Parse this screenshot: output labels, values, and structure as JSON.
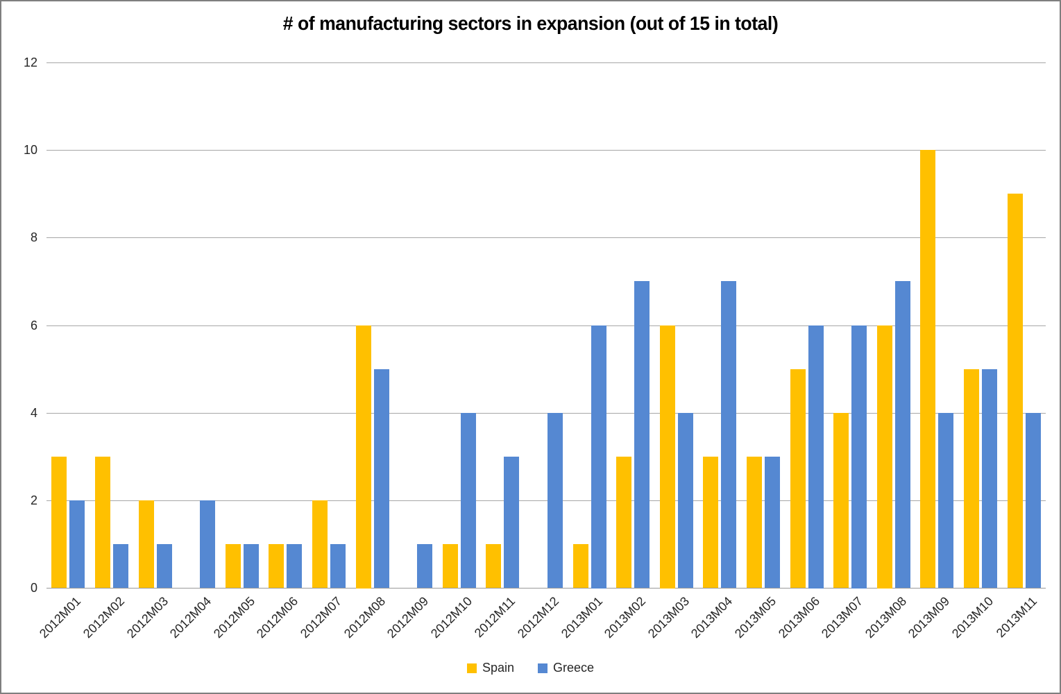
{
  "chart_data": {
    "type": "bar",
    "title": "# of manufacturing sectors in expansion (out of 15 in total)",
    "categories": [
      "2012M01",
      "2012M02",
      "2012M03",
      "2012M04",
      "2012M05",
      "2012M06",
      "2012M07",
      "2012M08",
      "2012M09",
      "2012M10",
      "2012M11",
      "2012M12",
      "2013M01",
      "2013M02",
      "2013M03",
      "2013M04",
      "2013M05",
      "2013M06",
      "2013M07",
      "2013M08",
      "2013M09",
      "2013M10",
      "2013M11"
    ],
    "series": [
      {
        "name": "Spain",
        "color": "#FFC000",
        "values": [
          3,
          3,
          2,
          0,
          1,
          1,
          2,
          6,
          0,
          1,
          1,
          0,
          1,
          3,
          6,
          3,
          3,
          5,
          4,
          6,
          10,
          5,
          9
        ]
      },
      {
        "name": "Greece",
        "color": "#5588D2",
        "values": [
          2,
          1,
          1,
          2,
          1,
          1,
          1,
          5,
          1,
          4,
          3,
          4,
          6,
          7,
          4,
          7,
          3,
          6,
          6,
          7,
          4,
          5,
          4
        ]
      }
    ],
    "ylim": [
      0,
      12
    ],
    "yticks": [
      0,
      2,
      4,
      6,
      8,
      10,
      12
    ],
    "grid": true,
    "legend_position": "bottom",
    "colors": {
      "gridline": "#A6A6A6",
      "axis_line": "#999999",
      "frame_border": "#7F7F7F",
      "text": "#262626"
    }
  }
}
